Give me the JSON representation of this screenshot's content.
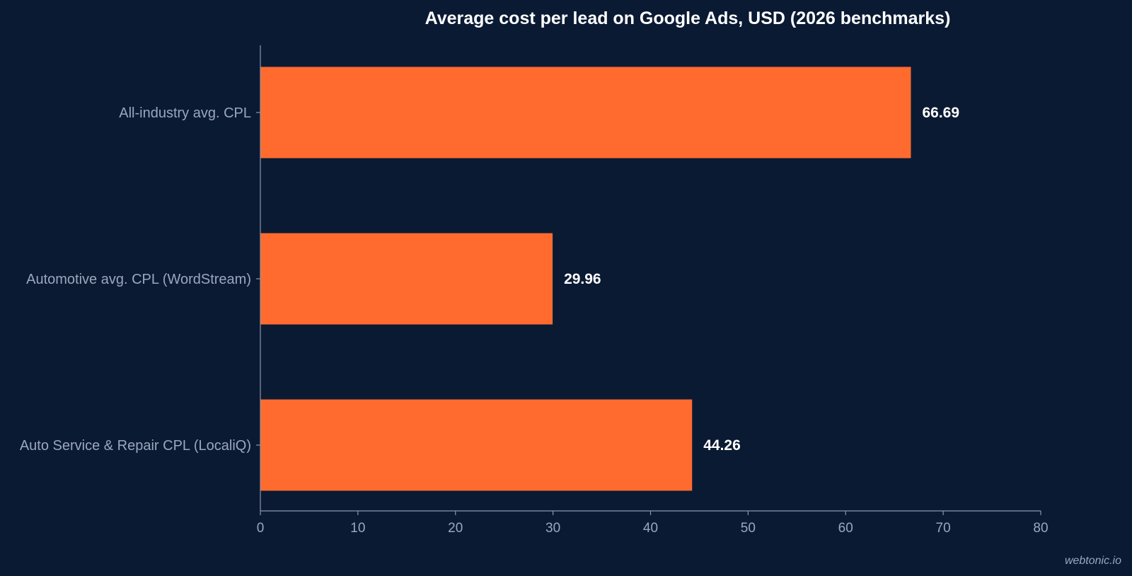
{
  "chart_data": {
    "type": "bar",
    "orientation": "horizontal",
    "title": "Average cost per lead on Google Ads, USD (2026 benchmarks)",
    "categories": [
      "All-industry avg. CPL",
      "Automotive avg. CPL (WordStream)",
      "Auto Service & Repair CPL (LocaliQ)"
    ],
    "values": [
      66.69,
      29.96,
      44.26
    ],
    "data_labels": [
      "66.69",
      "29.96",
      "44.26"
    ],
    "xlabel": "",
    "ylabel": "",
    "xlim": [
      0,
      80
    ],
    "x_ticks": [
      0,
      10,
      20,
      30,
      40,
      50,
      60,
      70,
      80
    ],
    "grid": false,
    "legend": "none",
    "colors": {
      "background": "#0b1a33",
      "bar": "#ff6b2f",
      "axis": "#8a96ab",
      "label": "#9aa7bd",
      "text": "#ffffff"
    }
  },
  "watermark": "webtonic.io"
}
